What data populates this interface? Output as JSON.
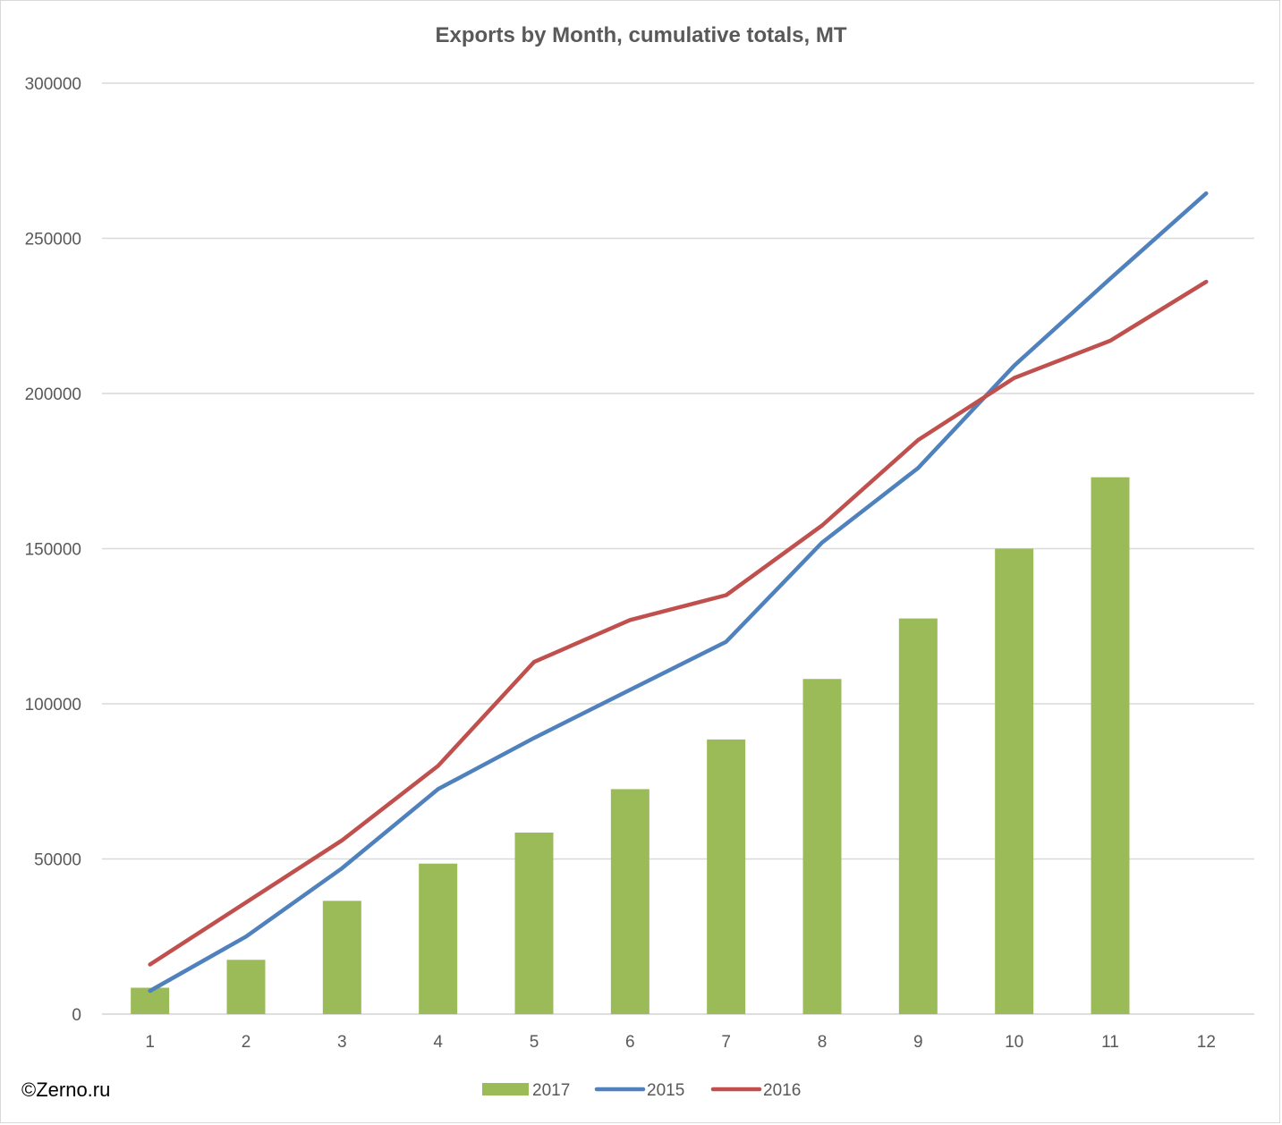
{
  "chart_data": {
    "type": "bar",
    "title": "Exports by Month, cumulative totals, MT",
    "categories": [
      "1",
      "2",
      "3",
      "4",
      "5",
      "6",
      "7",
      "8",
      "9",
      "10",
      "11",
      "12"
    ],
    "ylim": [
      0,
      300000
    ],
    "yticks": [
      "0",
      "50000",
      "100000",
      "150000",
      "200000",
      "250000",
      "300000"
    ],
    "grid": true,
    "legend_position": "bottom",
    "series": [
      {
        "name": "2017",
        "kind": "bar",
        "color": "#9bbb59",
        "values": [
          8500,
          17500,
          36500,
          48500,
          58500,
          72500,
          88500,
          108000,
          127500,
          150000,
          173000,
          null
        ]
      },
      {
        "name": "2015",
        "kind": "line",
        "color": "#4f81bd",
        "values": [
          7500,
          25000,
          47000,
          72500,
          89000,
          104500,
          120000,
          152000,
          176000,
          209000,
          237000,
          264500
        ]
      },
      {
        "name": "2016",
        "kind": "line",
        "color": "#c0504d",
        "values": [
          16000,
          36000,
          56000,
          80000,
          113500,
          127000,
          135000,
          157500,
          185000,
          205000,
          217000,
          236000
        ]
      }
    ]
  },
  "credit": "©Zerno.ru"
}
